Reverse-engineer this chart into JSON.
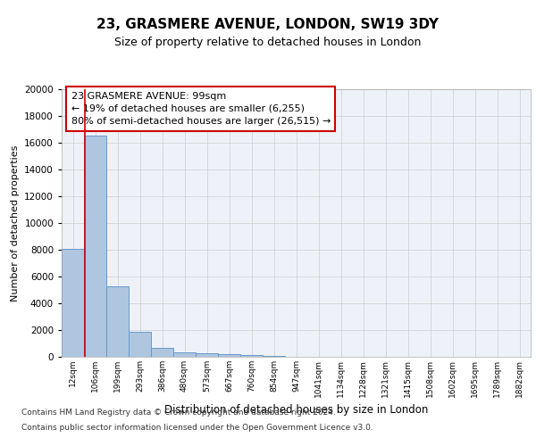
{
  "title1": "23, GRASMERE AVENUE, LONDON, SW19 3DY",
  "title2": "Size of property relative to detached houses in London",
  "xlabel": "Distribution of detached houses by size in London",
  "ylabel": "Number of detached properties",
  "footer1": "Contains HM Land Registry data © Crown copyright and database right 2024.",
  "footer2": "Contains public sector information licensed under the Open Government Licence v3.0.",
  "bar_color": "#aec6df",
  "bar_edge_color": "#6699cc",
  "categories": [
    "12sqm",
    "106sqm",
    "199sqm",
    "293sqm",
    "386sqm",
    "480sqm",
    "573sqm",
    "667sqm",
    "760sqm",
    "854sqm",
    "947sqm",
    "1041sqm",
    "1134sqm",
    "1228sqm",
    "1321sqm",
    "1415sqm",
    "1508sqm",
    "1602sqm",
    "1695sqm",
    "1789sqm",
    "1882sqm"
  ],
  "values": [
    8100,
    16500,
    5300,
    1850,
    700,
    350,
    250,
    200,
    150,
    100,
    0,
    0,
    0,
    0,
    0,
    0,
    0,
    0,
    0,
    0,
    0
  ],
  "ylim": [
    0,
    20000
  ],
  "yticks": [
    0,
    2000,
    4000,
    6000,
    8000,
    10000,
    12000,
    14000,
    16000,
    18000,
    20000
  ],
  "red_line_x": 0.55,
  "annotation_text": "23 GRASMERE AVENUE: 99sqm\n← 19% of detached houses are smaller (6,255)\n80% of semi-detached houses are larger (26,515) →",
  "annotation_box_color": "#ffffff",
  "annotation_box_edge": "#cc0000",
  "background_color": "#eef2f8"
}
